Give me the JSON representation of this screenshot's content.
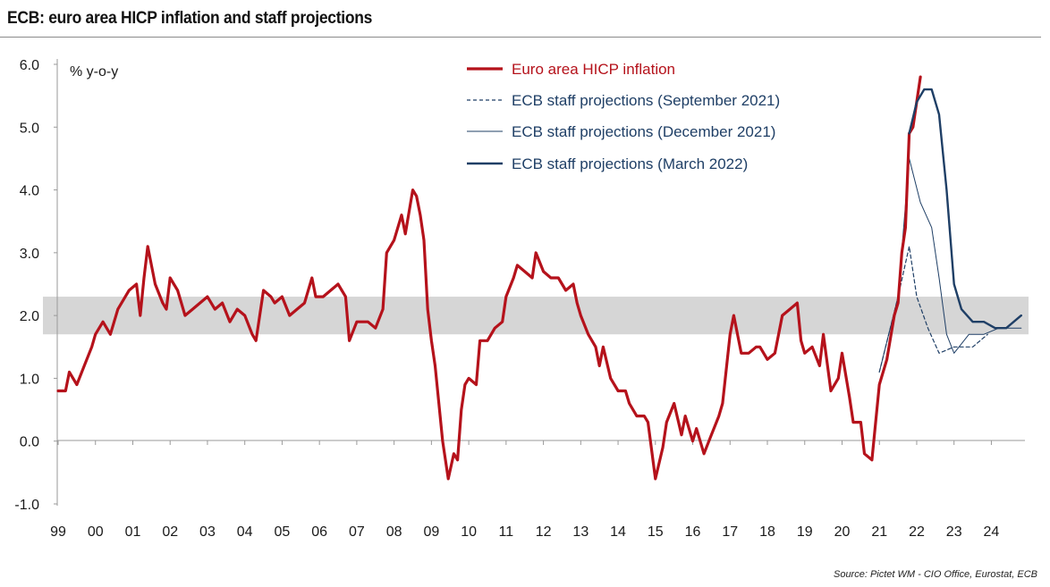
{
  "title": "ECB: euro area HICP inflation and staff projections",
  "source": "Source: Pictet WM - CIO Office, Eurostat, ECB",
  "colors": {
    "hicp": "#b5121b",
    "projection": "#1f3f66",
    "band": "#d6d6d6",
    "axis": "#9a9a9a"
  },
  "chart_data": {
    "type": "line",
    "ylabel": "% y-o-y",
    "ylim": [
      -1.0,
      6.0
    ],
    "yticks": [
      "6.0",
      "5.0",
      "4.0",
      "3.0",
      "2.0",
      "1.0",
      "0.0",
      "-1.0"
    ],
    "xlim": [
      1999.0,
      2024.9
    ],
    "xticks": [
      "99",
      "00",
      "01",
      "02",
      "03",
      "04",
      "05",
      "06",
      "07",
      "08",
      "09",
      "10",
      "11",
      "12",
      "13",
      "14",
      "15",
      "16",
      "17",
      "18",
      "19",
      "20",
      "21",
      "22",
      "23",
      "24"
    ],
    "band": [
      1.7,
      2.3
    ],
    "series": [
      {
        "name": "Euro area HICP inflation",
        "style": "thick",
        "points": [
          [
            1999.0,
            0.8
          ],
          [
            1999.2,
            0.8
          ],
          [
            1999.3,
            1.1
          ],
          [
            1999.5,
            0.9
          ],
          [
            1999.7,
            1.2
          ],
          [
            1999.9,
            1.5
          ],
          [
            2000.0,
            1.7
          ],
          [
            2000.2,
            1.9
          ],
          [
            2000.4,
            1.7
          ],
          [
            2000.6,
            2.1
          ],
          [
            2000.8,
            2.3
          ],
          [
            2000.9,
            2.4
          ],
          [
            2001.1,
            2.5
          ],
          [
            2001.2,
            2.0
          ],
          [
            2001.3,
            2.6
          ],
          [
            2001.4,
            3.1
          ],
          [
            2001.6,
            2.5
          ],
          [
            2001.8,
            2.2
          ],
          [
            2001.9,
            2.1
          ],
          [
            2002.0,
            2.6
          ],
          [
            2002.2,
            2.4
          ],
          [
            2002.4,
            2.0
          ],
          [
            2002.6,
            2.1
          ],
          [
            2002.8,
            2.2
          ],
          [
            2003.0,
            2.3
          ],
          [
            2003.2,
            2.1
          ],
          [
            2003.4,
            2.2
          ],
          [
            2003.6,
            1.9
          ],
          [
            2003.8,
            2.1
          ],
          [
            2004.0,
            2.0
          ],
          [
            2004.2,
            1.7
          ],
          [
            2004.3,
            1.6
          ],
          [
            2004.5,
            2.4
          ],
          [
            2004.7,
            2.3
          ],
          [
            2004.8,
            2.2
          ],
          [
            2005.0,
            2.3
          ],
          [
            2005.2,
            2.0
          ],
          [
            2005.4,
            2.1
          ],
          [
            2005.6,
            2.2
          ],
          [
            2005.8,
            2.6
          ],
          [
            2005.9,
            2.3
          ],
          [
            2006.1,
            2.3
          ],
          [
            2006.3,
            2.4
          ],
          [
            2006.5,
            2.5
          ],
          [
            2006.7,
            2.3
          ],
          [
            2006.8,
            1.6
          ],
          [
            2007.0,
            1.9
          ],
          [
            2007.3,
            1.9
          ],
          [
            2007.5,
            1.8
          ],
          [
            2007.7,
            2.1
          ],
          [
            2007.8,
            3.0
          ],
          [
            2008.0,
            3.2
          ],
          [
            2008.2,
            3.6
          ],
          [
            2008.3,
            3.3
          ],
          [
            2008.5,
            4.0
          ],
          [
            2008.6,
            3.9
          ],
          [
            2008.7,
            3.6
          ],
          [
            2008.8,
            3.2
          ],
          [
            2008.9,
            2.1
          ],
          [
            2009.0,
            1.6
          ],
          [
            2009.1,
            1.2
          ],
          [
            2009.2,
            0.6
          ],
          [
            2009.3,
            0.0
          ],
          [
            2009.45,
            -0.6
          ],
          [
            2009.6,
            -0.2
          ],
          [
            2009.7,
            -0.3
          ],
          [
            2009.8,
            0.5
          ],
          [
            2009.9,
            0.9
          ],
          [
            2010.0,
            1.0
          ],
          [
            2010.2,
            0.9
          ],
          [
            2010.3,
            1.6
          ],
          [
            2010.5,
            1.6
          ],
          [
            2010.7,
            1.8
          ],
          [
            2010.9,
            1.9
          ],
          [
            2011.0,
            2.3
          ],
          [
            2011.2,
            2.6
          ],
          [
            2011.3,
            2.8
          ],
          [
            2011.5,
            2.7
          ],
          [
            2011.7,
            2.6
          ],
          [
            2011.8,
            3.0
          ],
          [
            2012.0,
            2.7
          ],
          [
            2012.2,
            2.6
          ],
          [
            2012.4,
            2.6
          ],
          [
            2012.6,
            2.4
          ],
          [
            2012.8,
            2.5
          ],
          [
            2012.9,
            2.2
          ],
          [
            2013.0,
            2.0
          ],
          [
            2013.2,
            1.7
          ],
          [
            2013.4,
            1.5
          ],
          [
            2013.5,
            1.2
          ],
          [
            2013.6,
            1.5
          ],
          [
            2013.8,
            1.0
          ],
          [
            2014.0,
            0.8
          ],
          [
            2014.2,
            0.8
          ],
          [
            2014.3,
            0.6
          ],
          [
            2014.5,
            0.4
          ],
          [
            2014.7,
            0.4
          ],
          [
            2014.8,
            0.3
          ],
          [
            2015.0,
            -0.6
          ],
          [
            2015.2,
            -0.1
          ],
          [
            2015.3,
            0.3
          ],
          [
            2015.5,
            0.6
          ],
          [
            2015.7,
            0.1
          ],
          [
            2015.8,
            0.4
          ],
          [
            2016.0,
            0.0
          ],
          [
            2016.1,
            0.2
          ],
          [
            2016.3,
            -0.2
          ],
          [
            2016.5,
            0.1
          ],
          [
            2016.7,
            0.4
          ],
          [
            2016.8,
            0.6
          ],
          [
            2017.0,
            1.7
          ],
          [
            2017.1,
            2.0
          ],
          [
            2017.3,
            1.4
          ],
          [
            2017.5,
            1.4
          ],
          [
            2017.7,
            1.5
          ],
          [
            2017.8,
            1.5
          ],
          [
            2018.0,
            1.3
          ],
          [
            2018.2,
            1.4
          ],
          [
            2018.4,
            2.0
          ],
          [
            2018.6,
            2.1
          ],
          [
            2018.8,
            2.2
          ],
          [
            2018.9,
            1.6
          ],
          [
            2019.0,
            1.4
          ],
          [
            2019.2,
            1.5
          ],
          [
            2019.4,
            1.2
          ],
          [
            2019.5,
            1.7
          ],
          [
            2019.7,
            0.8
          ],
          [
            2019.9,
            1.0
          ],
          [
            2020.0,
            1.4
          ],
          [
            2020.2,
            0.7
          ],
          [
            2020.3,
            0.3
          ],
          [
            2020.5,
            0.3
          ],
          [
            2020.6,
            -0.2
          ],
          [
            2020.8,
            -0.3
          ],
          [
            2021.0,
            0.9
          ],
          [
            2021.2,
            1.3
          ],
          [
            2021.4,
            2.0
          ],
          [
            2021.5,
            2.2
          ],
          [
            2021.6,
            3.0
          ],
          [
            2021.7,
            3.4
          ],
          [
            2021.8,
            4.9
          ],
          [
            2021.9,
            5.0
          ],
          [
            2022.1,
            5.8
          ]
        ]
      },
      {
        "name": "ECB staff projections (September 2021)",
        "style": "dashed",
        "points": [
          [
            2021.0,
            1.1
          ],
          [
            2021.5,
            2.3
          ],
          [
            2021.8,
            3.1
          ],
          [
            2022.0,
            2.3
          ],
          [
            2022.3,
            1.8
          ],
          [
            2022.6,
            1.4
          ],
          [
            2023.0,
            1.5
          ],
          [
            2023.5,
            1.5
          ],
          [
            2023.9,
            1.7
          ]
        ]
      },
      {
        "name": "ECB staff projections (December 2021)",
        "style": "thin",
        "points": [
          [
            2021.0,
            1.1
          ],
          [
            2021.5,
            2.3
          ],
          [
            2021.8,
            4.5
          ],
          [
            2022.1,
            3.8
          ],
          [
            2022.4,
            3.4
          ],
          [
            2022.6,
            2.6
          ],
          [
            2022.8,
            1.7
          ],
          [
            2023.0,
            1.4
          ],
          [
            2023.4,
            1.7
          ],
          [
            2023.8,
            1.7
          ],
          [
            2024.2,
            1.8
          ],
          [
            2024.8,
            1.8
          ]
        ]
      },
      {
        "name": "ECB staff projections (March 2022)",
        "style": "medium",
        "points": [
          [
            2021.8,
            4.9
          ],
          [
            2022.0,
            5.4
          ],
          [
            2022.2,
            5.6
          ],
          [
            2022.4,
            5.6
          ],
          [
            2022.6,
            5.2
          ],
          [
            2022.8,
            4.0
          ],
          [
            2023.0,
            2.5
          ],
          [
            2023.2,
            2.1
          ],
          [
            2023.5,
            1.9
          ],
          [
            2023.8,
            1.9
          ],
          [
            2024.1,
            1.8
          ],
          [
            2024.4,
            1.8
          ],
          [
            2024.8,
            2.0
          ]
        ]
      }
    ]
  }
}
